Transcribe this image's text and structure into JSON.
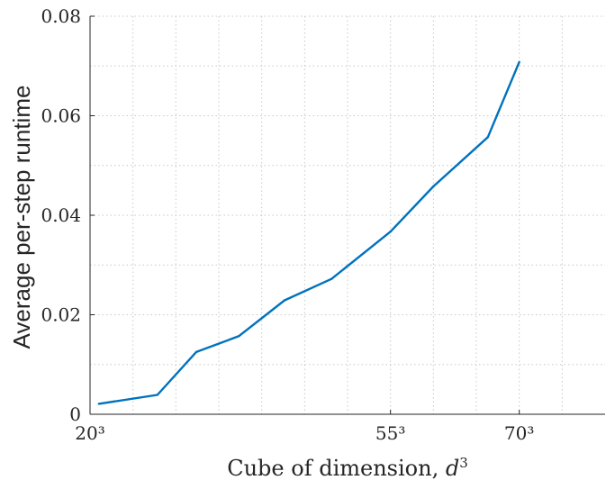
{
  "chart_data": {
    "type": "line",
    "title": "",
    "xlabel": "Cube of dimension, d³",
    "ylabel": "Average per-step runtime",
    "x_scale": "cubic",
    "xlim": [
      8000,
      512000
    ],
    "ylim": [
      0,
      0.08
    ],
    "x_ticks": [
      8000,
      166375,
      343000
    ],
    "x_tick_labels": [
      "20³",
      "55³",
      "70³"
    ],
    "y_ticks": [
      0,
      0.02,
      0.04,
      0.06,
      0.08
    ],
    "y_tick_labels": [
      "0",
      "0.02",
      "0.04",
      "0.06",
      "0.08"
    ],
    "grid": true,
    "series": [
      {
        "color": "#0072bd",
        "x": [
          9300,
          21600,
          33900,
          52000,
          77600,
          111500,
          166375,
          216000,
          292000,
          343000
        ],
        "y": [
          0.0021,
          0.0039,
          0.0125,
          0.0157,
          0.0229,
          0.0272,
          0.0367,
          0.0458,
          0.0557,
          0.0708
        ]
      }
    ]
  }
}
